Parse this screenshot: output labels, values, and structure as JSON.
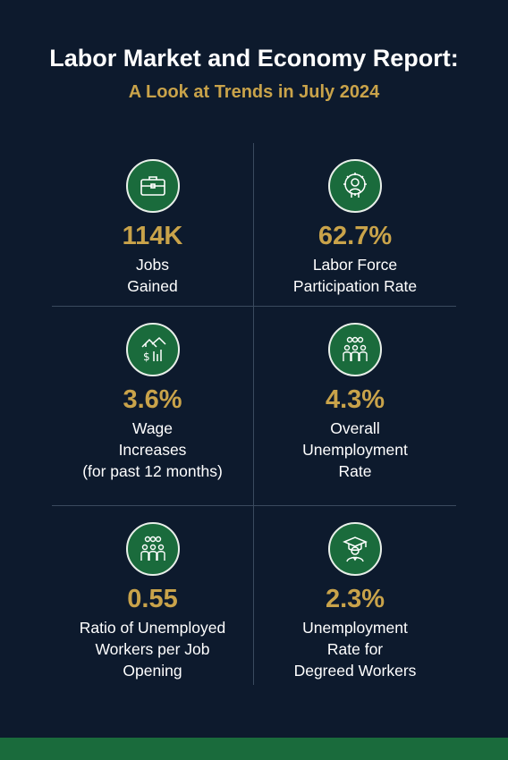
{
  "header": {
    "title": "Labor Market and Economy Report:",
    "subtitle": "A Look at Trends in July 2024"
  },
  "stats": [
    {
      "icon": "briefcase-icon",
      "value": "114K",
      "label_lines": [
        "Jobs",
        "Gained"
      ]
    },
    {
      "icon": "gear-worker-icon",
      "value": "62.7%",
      "label_lines": [
        "Labor Force",
        "Participation Rate"
      ]
    },
    {
      "icon": "wage-increase-icon",
      "value": "3.6%",
      "label_lines": [
        "Wage",
        "Increases",
        "(for past 12 months)"
      ]
    },
    {
      "icon": "people-group-icon",
      "value": "4.3%",
      "label_lines": [
        "Overall",
        "Unemployment",
        "Rate"
      ]
    },
    {
      "icon": "people-group-icon",
      "value": "0.55",
      "label_lines": [
        "Ratio of Unemployed",
        "Workers per Job",
        "Opening"
      ]
    },
    {
      "icon": "graduate-icon",
      "value": "2.3%",
      "label_lines": [
        "Unemployment",
        "Rate for",
        "Degreed Workers"
      ]
    }
  ],
  "colors": {
    "background": "#0d1a2d",
    "accent_gold": "#c9a34a",
    "icon_green": "#1a6b3c"
  }
}
